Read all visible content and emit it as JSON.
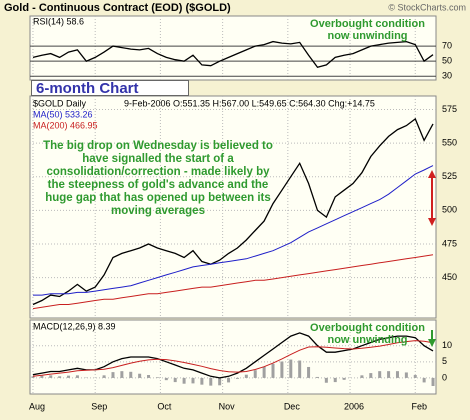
{
  "title": "Gold - Continuous Contract (EOD) ($GOLD)",
  "source": "© StockCharts.com",
  "x_axis": {
    "x": [
      0,
      3,
      6,
      9,
      12,
      15,
      18,
      21,
      24,
      27,
      30,
      33,
      36,
      39,
      42,
      45,
      48,
      51,
      54,
      57,
      60,
      63,
      66,
      69,
      72,
      75,
      78,
      81,
      84,
      87,
      90,
      93,
      96,
      99,
      102,
      105,
      108,
      111,
      114,
      117,
      120,
      123,
      126,
      129,
      132,
      135
    ],
    "xlim": [
      -1,
      136
    ],
    "xticks": [
      {
        "value": 0,
        "label": "Aug"
      },
      {
        "value": 21,
        "label": "Sep"
      },
      {
        "value": 43,
        "label": "Oct"
      },
      {
        "value": 64,
        "label": "Nov"
      },
      {
        "value": 86,
        "label": "Dec"
      },
      {
        "value": 107,
        "label": "2006"
      },
      {
        "value": 129,
        "label": "Feb"
      }
    ]
  },
  "chart_data": [
    {
      "type": "line",
      "annotation": "Overbought condition now unwinding",
      "ylim": [
        25,
        110
      ],
      "yticks": [
        70,
        50,
        30
      ],
      "grid": true,
      "series": [
        {
          "name": "RSI(14) 58.6",
          "color": "#000000",
          "values": [
            55,
            58,
            60,
            55,
            62,
            65,
            50,
            55,
            62,
            70,
            68,
            66,
            65,
            67,
            60,
            55,
            52,
            50,
            58,
            45,
            44,
            50,
            55,
            60,
            65,
            70,
            72,
            76,
            74,
            73,
            75,
            58,
            42,
            45,
            55,
            58,
            60,
            65,
            70,
            72,
            74,
            75,
            76,
            72,
            50,
            58.6
          ]
        }
      ]
    },
    {
      "type": "line",
      "label": "6-month Chart",
      "quote": "9-Feb-2006 O:551.35 H:567.00 L:549.65 C:564.30 Chg:+14.75",
      "annotation": "The big drop on Wednesday is believed to have signalled the start of a consolidation/correction - made likely by the steepness of gold's advance and the huge gap that has opened up between its moving averages",
      "ylim": [
        420,
        585
      ],
      "yticks": [
        575,
        550,
        525,
        500,
        475,
        450
      ],
      "grid": true,
      "series": [
        {
          "name": "$GOLD Daily",
          "color": "#000000",
          "values": [
            430,
            433,
            437,
            436,
            440,
            445,
            440,
            443,
            452,
            465,
            468,
            470,
            472,
            475,
            472,
            470,
            468,
            465,
            470,
            462,
            460,
            463,
            468,
            472,
            478,
            485,
            492,
            505,
            515,
            525,
            535,
            520,
            500,
            495,
            510,
            515,
            520,
            528,
            540,
            548,
            555,
            560,
            563,
            568,
            552,
            564.3
          ]
        },
        {
          "name": "MA(50) 533.26",
          "color": "#1f1fc8",
          "values": [
            437,
            437,
            438,
            438,
            438,
            439,
            439,
            440,
            441,
            442,
            443,
            444,
            446,
            448,
            450,
            452,
            454,
            456,
            458,
            459,
            460,
            461,
            462,
            463,
            464,
            466,
            468,
            470,
            473,
            476,
            480,
            484,
            487,
            490,
            493,
            496,
            499,
            502,
            505,
            508,
            512,
            517,
            522,
            527,
            530,
            533.26
          ]
        },
        {
          "name": "MA(200) 466.95",
          "color": "#c81f1f",
          "values": [
            427,
            428,
            429,
            430,
            430,
            431,
            432,
            433,
            434,
            434,
            435,
            436,
            437,
            438,
            438,
            439,
            440,
            441,
            442,
            443,
            443,
            444,
            445,
            446,
            447,
            448,
            448,
            449,
            450,
            451,
            452,
            453,
            454,
            455,
            456,
            457,
            458,
            459,
            460,
            461,
            462,
            463,
            464,
            465,
            466,
            466.95
          ]
        }
      ]
    },
    {
      "type": "line",
      "annotation": "Overbought condition now unwinding",
      "ylim": [
        -5,
        18
      ],
      "yticks": [
        10,
        5,
        0
      ],
      "grid": true,
      "series": [
        {
          "name": "MACD(12,26,9) 8.39",
          "color": "#000000",
          "values": [
            1,
            1.5,
            2,
            2,
            2.5,
            3,
            2.5,
            2.5,
            3.5,
            5,
            6,
            6.5,
            6.5,
            6.5,
            6,
            5,
            4,
            3,
            2.5,
            1.5,
            0.5,
            0,
            0.5,
            1.5,
            3,
            5,
            7,
            9,
            11,
            13,
            14,
            13,
            10,
            8,
            8,
            8.5,
            9,
            10,
            11,
            12,
            12.5,
            13,
            13,
            12.5,
            10,
            8.39
          ]
        },
        {
          "color": "#c81f1f",
          "values": [
            0.5,
            0.8,
            1.2,
            1.5,
            1.8,
            2.2,
            2.4,
            2.5,
            2.7,
            3.2,
            3.9,
            4.6,
            5.2,
            5.6,
            5.8,
            5.7,
            5.3,
            4.8,
            4.2,
            3.6,
            2.9,
            2.3,
            1.9,
            1.8,
            2.0,
            2.6,
            3.5,
            4.6,
            5.9,
            7.3,
            8.6,
            9.6,
            9.7,
            9.5,
            9.3,
            9.1,
            9.0,
            9.2,
            9.5,
            9.9,
            10.4,
            10.9,
            11.3,
            11.6,
            11.4,
            10.9
          ]
        }
      ],
      "histogram": {
        "color": "#a0a0a0",
        "values": [
          0.5,
          0.7,
          0.8,
          0.5,
          0.7,
          0.8,
          0.1,
          0,
          0.8,
          1.8,
          2.1,
          1.9,
          1.3,
          0.9,
          0.2,
          -0.7,
          -1.3,
          -1.8,
          -1.7,
          -2.1,
          -2.4,
          -2.3,
          -1.4,
          -0.3,
          1.0,
          2.4,
          3.5,
          4.4,
          5.1,
          5.7,
          5.4,
          3.4,
          0.3,
          -1.5,
          -1.3,
          -0.6,
          0,
          0.8,
          1.5,
          2.1,
          2.1,
          2.1,
          1.7,
          0.9,
          -1.4,
          -2.51
        ]
      }
    }
  ]
}
